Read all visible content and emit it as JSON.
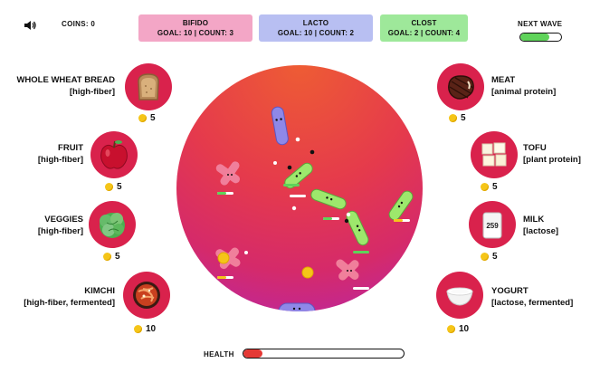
{
  "hud": {
    "coins_label": "COINS: 0",
    "next_wave_label": "NEXT WAVE",
    "next_wave_progress": 0.72,
    "health_label": "HEALTH",
    "health_progress": 0.12
  },
  "goals": [
    {
      "name": "BIFIDO",
      "stats": "GOAL: 10 | COUNT: 3",
      "color": "#f3a6c6"
    },
    {
      "name": "LACTO",
      "stats": "GOAL: 10 | COUNT: 2",
      "color": "#b8bff2"
    },
    {
      "name": "CLOST",
      "stats": "GOAL: 2 | COUNT: 4",
      "color": "#9ee89a"
    }
  ],
  "foods_left": [
    {
      "name": "WHOLE WHEAT BREAD",
      "tag": "[high-fiber]",
      "price": "5",
      "icon": "bread-icon"
    },
    {
      "name": "FRUIT",
      "tag": "[high-fiber]",
      "price": "5",
      "icon": "apple-icon"
    },
    {
      "name": "VEGGIES",
      "tag": "[high-fiber]",
      "price": "5",
      "icon": "lettuce-icon"
    },
    {
      "name": "KIMCHI",
      "tag": "[high-fiber, fermented]",
      "price": "10",
      "icon": "kimchi-icon"
    }
  ],
  "foods_right": [
    {
      "name": "MEAT",
      "tag": "[animal protein]",
      "price": "5",
      "icon": "steak-icon"
    },
    {
      "name": "TOFU",
      "tag": "[plant protein]",
      "price": "5",
      "icon": "tofu-icon"
    },
    {
      "name": "MILK",
      "tag": "[lactose]",
      "price": "5",
      "icon": "milk-icon",
      "carton_text": "259"
    },
    {
      "name": "YOGURT",
      "tag": "[lactose, fermented]",
      "price": "10",
      "icon": "yogurt-icon"
    }
  ],
  "colors": {
    "coin": "#f5c518",
    "food_circle": "#d9224c",
    "wave_fill": "#5fd35a",
    "health_fill": "#e53935"
  }
}
